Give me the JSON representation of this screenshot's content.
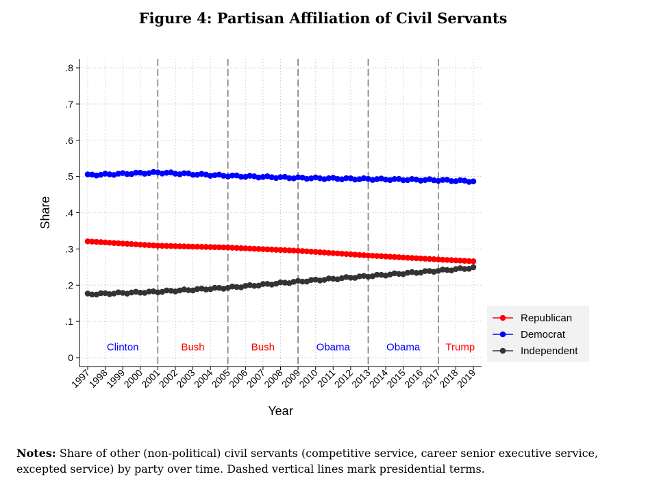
{
  "figure": {
    "title": "Figure 4: Partisan Affiliation of Civil Servants",
    "notes_label": "Notes:",
    "notes_text": "Share of other (non-political) civil servants (competitive service, career senior executive service, excepted service) by party over time. Dashed vertical lines mark presidential terms."
  },
  "chart_data": {
    "type": "scatter",
    "title": "Figure 4: Partisan Affiliation of Civil Servants",
    "xlabel": "Year",
    "ylabel": "Share",
    "xlim": [
      1997,
      2019
    ],
    "ylim": [
      0,
      0.8
    ],
    "x_ticks": [
      "1997",
      "1998",
      "1999",
      "2000",
      "2001",
      "2002",
      "2003",
      "2004",
      "2005",
      "2006",
      "2007",
      "2008",
      "2009",
      "2010",
      "2011",
      "2012",
      "2013",
      "2014",
      "2015",
      "2016",
      "2017",
      "2018",
      "2019"
    ],
    "y_ticks": [
      {
        "value": 0,
        "label": "0"
      },
      {
        "value": 0.1,
        "label": ".1"
      },
      {
        "value": 0.2,
        "label": ".2"
      },
      {
        "value": 0.3,
        "label": ".3"
      },
      {
        "value": 0.4,
        "label": ".4"
      },
      {
        "value": 0.5,
        "label": ".5"
      },
      {
        "value": 0.6,
        "label": ".6"
      },
      {
        "value": 0.7,
        "label": ".7"
      },
      {
        "value": 0.8,
        "label": ".8"
      }
    ],
    "grid": true,
    "legend_position": "right",
    "points_per_year": 4,
    "series": [
      {
        "name": "Republican",
        "color": "#ff0000",
        "keypoints": [
          [
            1997,
            0.321
          ],
          [
            2001,
            0.309
          ],
          [
            2005,
            0.304
          ],
          [
            2009,
            0.295
          ],
          [
            2013,
            0.282
          ],
          [
            2017,
            0.271
          ],
          [
            2019,
            0.266
          ]
        ]
      },
      {
        "name": "Democrat",
        "color": "#0000ff",
        "keypoints": [
          [
            1997,
            0.504
          ],
          [
            2001,
            0.511
          ],
          [
            2005,
            0.502
          ],
          [
            2009,
            0.496
          ],
          [
            2013,
            0.493
          ],
          [
            2017,
            0.49
          ],
          [
            2019,
            0.487
          ]
        ]
      },
      {
        "name": "Independent",
        "color": "#333333",
        "keypoints": [
          [
            1997,
            0.175
          ],
          [
            2001,
            0.182
          ],
          [
            2005,
            0.193
          ],
          [
            2009,
            0.21
          ],
          [
            2013,
            0.225
          ],
          [
            2017,
            0.24
          ],
          [
            2019,
            0.248
          ]
        ]
      }
    ],
    "term_lines": [
      2001,
      2005,
      2009,
      2013,
      2017
    ],
    "term_labels": [
      {
        "text": "Clinton",
        "x": 1999,
        "color": "#0000ff"
      },
      {
        "text": "Bush",
        "x": 2003,
        "color": "#ff0000"
      },
      {
        "text": "Bush",
        "x": 2007,
        "color": "#ff0000"
      },
      {
        "text": "Obama",
        "x": 2011,
        "color": "#0000ff"
      },
      {
        "text": "Obama",
        "x": 2015,
        "color": "#0000ff"
      },
      {
        "text": "Trump",
        "x": 2018.25,
        "color": "#ff0000"
      }
    ],
    "term_label_y": 0.02
  }
}
